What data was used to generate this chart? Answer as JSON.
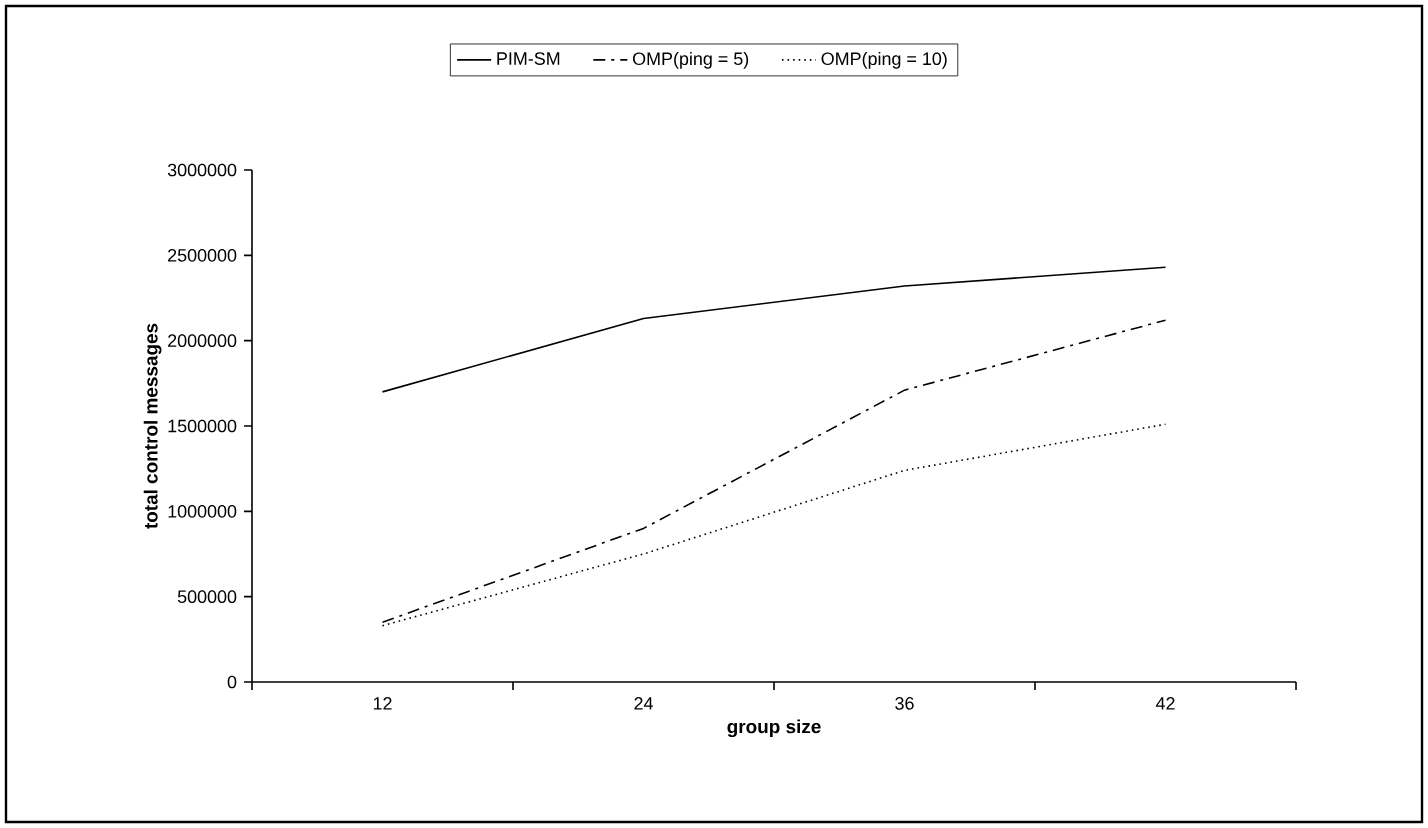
{
  "chart_data": {
    "type": "line",
    "xlabel": "group size",
    "ylabel": "total control messages",
    "categories": [
      "12",
      "24",
      "36",
      "42"
    ],
    "ylim": [
      0,
      3000000
    ],
    "yticks": [
      0,
      500000,
      1000000,
      1500000,
      2000000,
      2500000,
      3000000
    ],
    "legend": "top",
    "grid": false,
    "series": [
      {
        "name": "PIM-SM",
        "color": "#000000",
        "line_style": "solid",
        "values": [
          1700000,
          2130000,
          2320000,
          2430000
        ]
      },
      {
        "name": "OMP(ping = 5)",
        "color": "#000000",
        "line_style": "dashed",
        "values": [
          350000,
          900000,
          1710000,
          2120000
        ]
      },
      {
        "name": "OMP(ping = 10)",
        "color": "#000000",
        "line_style": "dotted",
        "values": [
          330000,
          750000,
          1240000,
          1510000
        ]
      }
    ]
  }
}
